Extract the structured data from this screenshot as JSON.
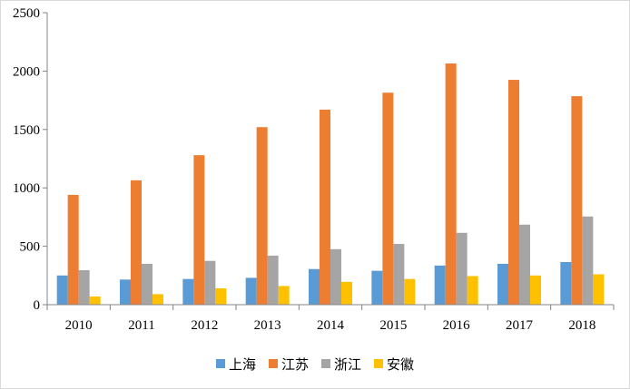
{
  "chart_data": {
    "type": "bar",
    "title": "",
    "xlabel": "",
    "ylabel": "",
    "categories": [
      "2010",
      "2011",
      "2012",
      "2013",
      "2014",
      "2015",
      "2016",
      "2017",
      "2018"
    ],
    "ylim": [
      0,
      2500
    ],
    "yticks": [
      "0",
      "500",
      "1000",
      "1500",
      "2000",
      "2500"
    ],
    "grid": false,
    "legend_position": "bottom",
    "series": [
      {
        "name": "上海",
        "color": "#5b9bd5",
        "values": [
          250,
          215,
          220,
          230,
          305,
          290,
          335,
          350,
          365
        ]
      },
      {
        "name": "江苏",
        "color": "#ed7d31",
        "values": [
          940,
          1065,
          1280,
          1520,
          1670,
          1815,
          2065,
          1925,
          1785
        ]
      },
      {
        "name": "浙江",
        "color": "#a5a5a5",
        "values": [
          295,
          350,
          375,
          420,
          475,
          520,
          615,
          685,
          755
        ]
      },
      {
        "name": "安徽",
        "color": "#ffc000",
        "values": [
          70,
          90,
          140,
          160,
          195,
          220,
          245,
          250,
          260
        ]
      }
    ]
  }
}
